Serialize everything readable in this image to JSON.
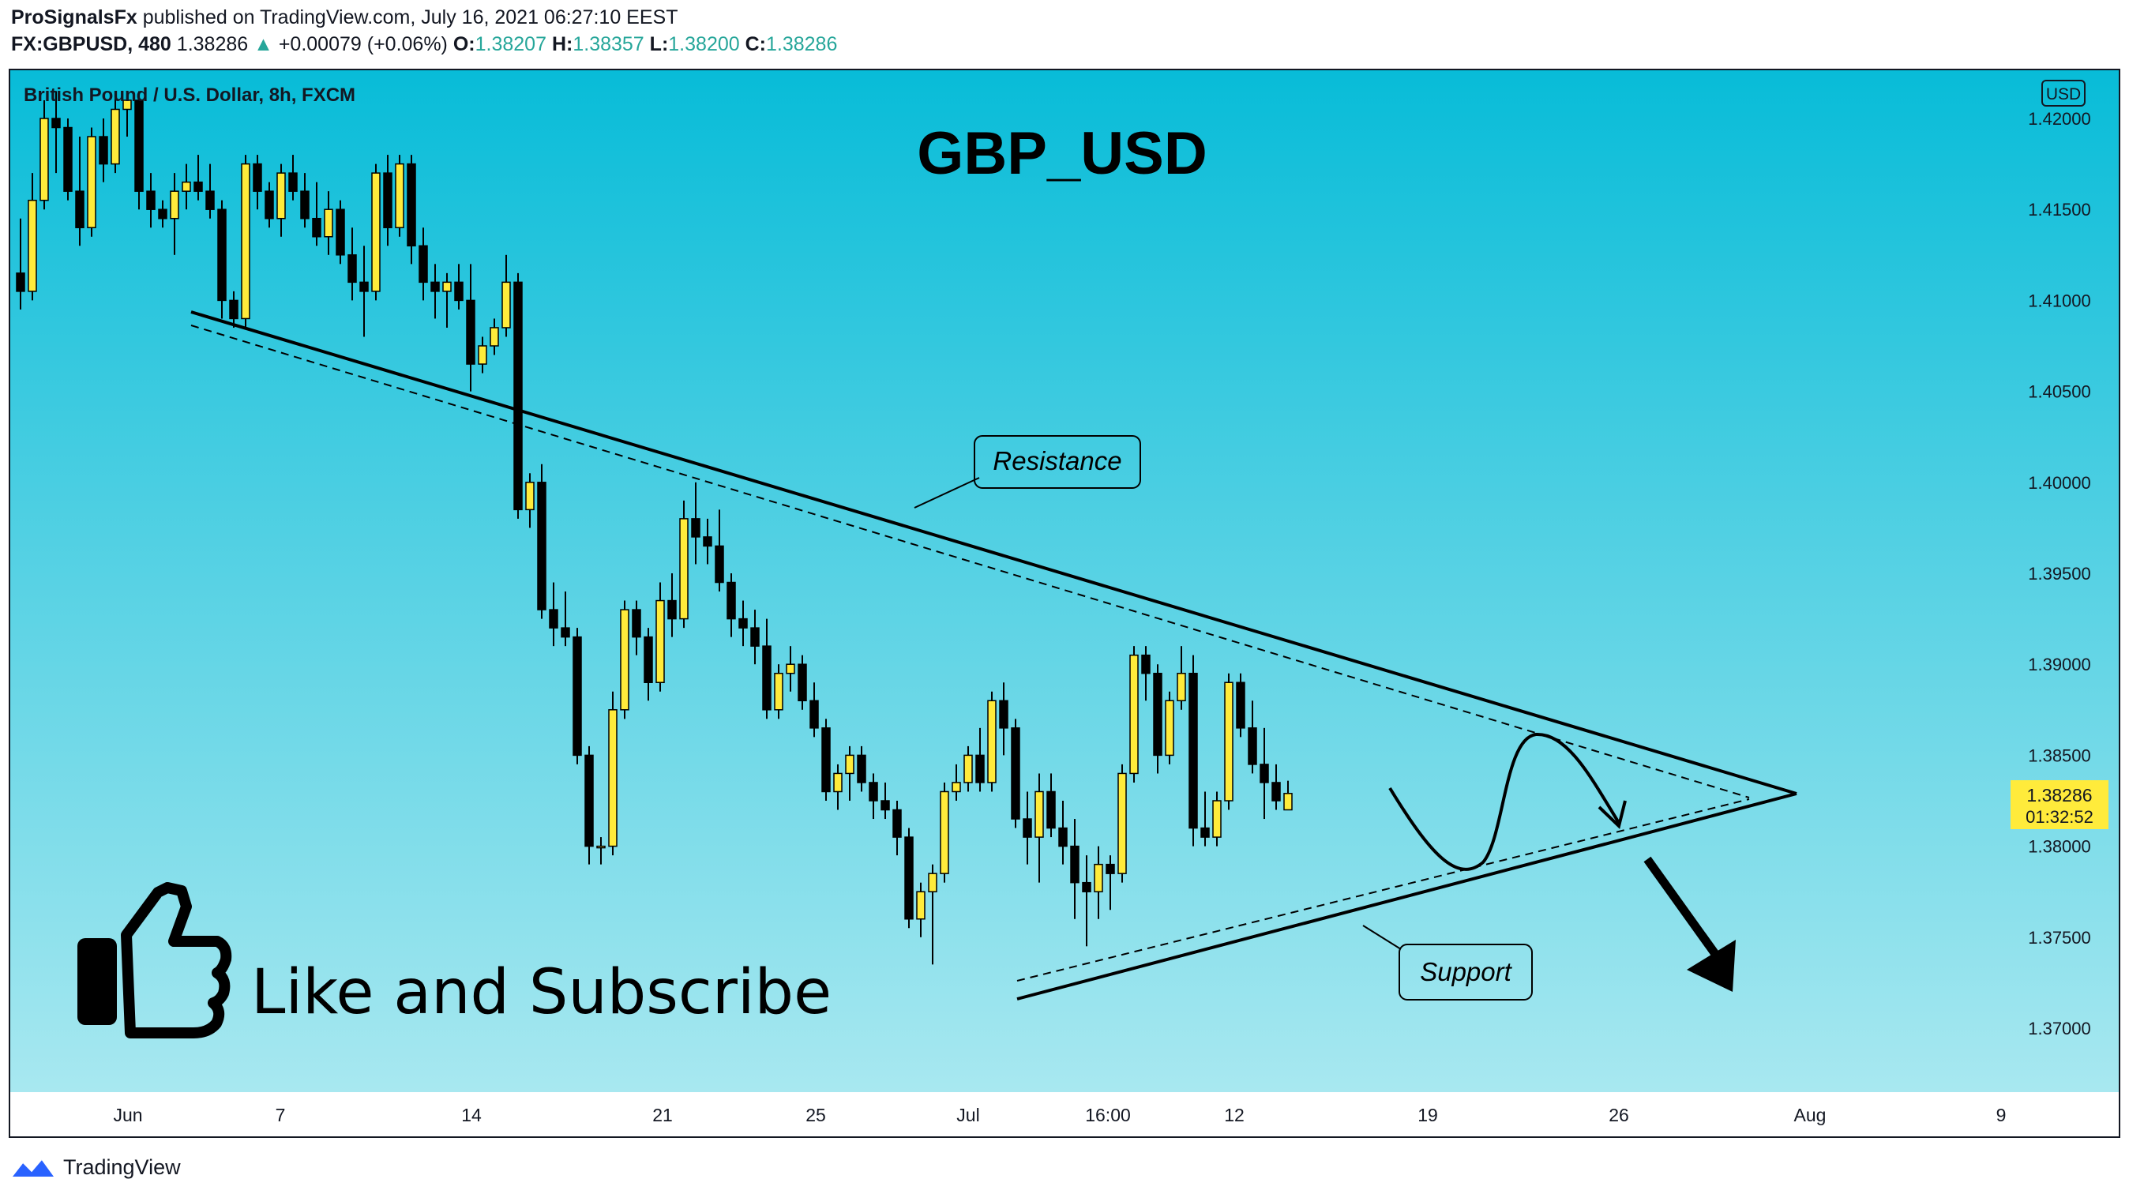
{
  "header": {
    "author": "ProSignalsFx",
    "published_text": "published on TradingView.com, July 16, 2021 06:27:10 EEST",
    "symbol": "FX:GBPUSD, 480",
    "last": "1.38286",
    "change": "+0.00079 (+0.06%)",
    "o_label": "O:",
    "o": "1.38207",
    "h_label": "H:",
    "h": "1.38357",
    "l_label": "L:",
    "l": "1.38200",
    "c_label": "C:",
    "c": "1.38286"
  },
  "chart": {
    "legend": "British Pound / U.S. Dollar, 8h, FXCM",
    "title": "GBP_USD",
    "currency_badge": "USD",
    "price_tag": "1.38286",
    "countdown": "01:32:52",
    "resistance_label": "Resistance",
    "support_label": "Support",
    "cta": "Like and Subscribe"
  },
  "footer": {
    "brand": "TradingView"
  },
  "colors": {
    "bg_top": "#08BCD8",
    "bg_bottom": "#A8E8F0",
    "candle_up": "#FFEB3B",
    "candle_down": "#000000",
    "price_tag": "#FFEB3B"
  },
  "chart_data": {
    "type": "candlestick",
    "title": "GBP_USD",
    "y_unit": "USD",
    "ylim": [
      1.3675,
      1.4215
    ],
    "yticks": [
      "1.42000",
      "1.41500",
      "1.41000",
      "1.40500",
      "1.40000",
      "1.39500",
      "1.39000",
      "1.38500",
      "1.38000",
      "1.37500",
      "1.37000"
    ],
    "xticks": [
      "Jun",
      "7",
      "14",
      "21",
      "25",
      "Jul",
      "16:00",
      "12",
      "19",
      "26",
      "Aug",
      "9"
    ],
    "ohlc": [
      [
        1.4115,
        1.4145,
        1.4095,
        1.4105
      ],
      [
        1.4105,
        1.417,
        1.41,
        1.4155
      ],
      [
        1.4155,
        1.421,
        1.415,
        1.42
      ],
      [
        1.42,
        1.4215,
        1.417,
        1.4195
      ],
      [
        1.4195,
        1.42,
        1.4155,
        1.416
      ],
      [
        1.416,
        1.419,
        1.413,
        1.414
      ],
      [
        1.414,
        1.4195,
        1.4135,
        1.419
      ],
      [
        1.419,
        1.42,
        1.4165,
        1.4175
      ],
      [
        1.4175,
        1.4215,
        1.417,
        1.4205
      ],
      [
        1.4205,
        1.4215,
        1.419,
        1.421
      ],
      [
        1.421,
        1.4215,
        1.415,
        1.416
      ],
      [
        1.416,
        1.417,
        1.414,
        1.415
      ],
      [
        1.415,
        1.4155,
        1.414,
        1.4145
      ],
      [
        1.4145,
        1.417,
        1.4125,
        1.416
      ],
      [
        1.416,
        1.4175,
        1.415,
        1.4165
      ],
      [
        1.4165,
        1.418,
        1.4155,
        1.416
      ],
      [
        1.416,
        1.4175,
        1.4145,
        1.415
      ],
      [
        1.415,
        1.4155,
        1.409,
        1.41
      ],
      [
        1.41,
        1.4105,
        1.4085,
        1.409
      ],
      [
        1.409,
        1.418,
        1.4085,
        1.4175
      ],
      [
        1.4175,
        1.418,
        1.415,
        1.416
      ],
      [
        1.416,
        1.4165,
        1.414,
        1.4145
      ],
      [
        1.4145,
        1.4175,
        1.4135,
        1.417
      ],
      [
        1.417,
        1.418,
        1.4155,
        1.416
      ],
      [
        1.416,
        1.417,
        1.414,
        1.4145
      ],
      [
        1.4145,
        1.4165,
        1.413,
        1.4135
      ],
      [
        1.4135,
        1.416,
        1.4125,
        1.415
      ],
      [
        1.415,
        1.4155,
        1.412,
        1.4125
      ],
      [
        1.4125,
        1.414,
        1.41,
        1.411
      ],
      [
        1.411,
        1.413,
        1.408,
        1.4105
      ],
      [
        1.4105,
        1.4175,
        1.41,
        1.417
      ],
      [
        1.417,
        1.418,
        1.413,
        1.414
      ],
      [
        1.414,
        1.418,
        1.4135,
        1.4175
      ],
      [
        1.4175,
        1.418,
        1.412,
        1.413
      ],
      [
        1.413,
        1.414,
        1.41,
        1.411
      ],
      [
        1.411,
        1.412,
        1.409,
        1.4105
      ],
      [
        1.4105,
        1.4115,
        1.4085,
        1.411
      ],
      [
        1.411,
        1.412,
        1.4095,
        1.41
      ],
      [
        1.41,
        1.412,
        1.405,
        1.4065
      ],
      [
        1.4065,
        1.408,
        1.406,
        1.4075
      ],
      [
        1.4075,
        1.409,
        1.407,
        1.4085
      ],
      [
        1.4085,
        1.4125,
        1.408,
        1.411
      ],
      [
        1.411,
        1.4115,
        1.398,
        1.3985
      ],
      [
        1.3985,
        1.4005,
        1.3975,
        1.4
      ],
      [
        1.4,
        1.401,
        1.3925,
        1.393
      ],
      [
        1.393,
        1.3945,
        1.391,
        1.392
      ],
      [
        1.392,
        1.394,
        1.391,
        1.3915
      ],
      [
        1.3915,
        1.392,
        1.3845,
        1.385
      ],
      [
        1.385,
        1.3855,
        1.379,
        1.38
      ],
      [
        1.38,
        1.3805,
        1.379,
        1.38
      ],
      [
        1.38,
        1.3885,
        1.3795,
        1.3875
      ],
      [
        1.3875,
        1.3935,
        1.387,
        1.393
      ],
      [
        1.393,
        1.3935,
        1.3905,
        1.3915
      ],
      [
        1.3915,
        1.392,
        1.388,
        1.389
      ],
      [
        1.389,
        1.3945,
        1.3885,
        1.3935
      ],
      [
        1.3935,
        1.395,
        1.3915,
        1.3925
      ],
      [
        1.3925,
        1.399,
        1.392,
        1.398
      ],
      [
        1.398,
        1.4,
        1.3955,
        1.397
      ],
      [
        1.397,
        1.398,
        1.3955,
        1.3965
      ],
      [
        1.3965,
        1.3985,
        1.394,
        1.3945
      ],
      [
        1.3945,
        1.395,
        1.3915,
        1.3925
      ],
      [
        1.3925,
        1.3935,
        1.391,
        1.392
      ],
      [
        1.392,
        1.393,
        1.39,
        1.391
      ],
      [
        1.391,
        1.3925,
        1.387,
        1.3875
      ],
      [
        1.3875,
        1.39,
        1.387,
        1.3895
      ],
      [
        1.3895,
        1.391,
        1.3885,
        1.39
      ],
      [
        1.39,
        1.3905,
        1.3875,
        1.388
      ],
      [
        1.388,
        1.389,
        1.386,
        1.3865
      ],
      [
        1.3865,
        1.387,
        1.3825,
        1.383
      ],
      [
        1.383,
        1.3845,
        1.382,
        1.384
      ],
      [
        1.384,
        1.3855,
        1.3825,
        1.385
      ],
      [
        1.385,
        1.3855,
        1.383,
        1.3835
      ],
      [
        1.3835,
        1.384,
        1.3815,
        1.3825
      ],
      [
        1.3825,
        1.3835,
        1.3815,
        1.382
      ],
      [
        1.382,
        1.3825,
        1.3795,
        1.3805
      ],
      [
        1.3805,
        1.381,
        1.3755,
        1.376
      ],
      [
        1.376,
        1.378,
        1.375,
        1.3775
      ],
      [
        1.3775,
        1.379,
        1.3735,
        1.3785
      ],
      [
        1.3785,
        1.3835,
        1.378,
        1.383
      ],
      [
        1.383,
        1.3845,
        1.3825,
        1.3835
      ],
      [
        1.3835,
        1.3855,
        1.383,
        1.385
      ],
      [
        1.385,
        1.3865,
        1.383,
        1.3835
      ],
      [
        1.3835,
        1.3885,
        1.383,
        1.388
      ],
      [
        1.388,
        1.389,
        1.385,
        1.3865
      ],
      [
        1.3865,
        1.387,
        1.381,
        1.3815
      ],
      [
        1.3815,
        1.383,
        1.379,
        1.3805
      ],
      [
        1.3805,
        1.384,
        1.378,
        1.383
      ],
      [
        1.383,
        1.384,
        1.3805,
        1.381
      ],
      [
        1.381,
        1.3825,
        1.379,
        1.38
      ],
      [
        1.38,
        1.3815,
        1.376,
        1.378
      ],
      [
        1.378,
        1.3795,
        1.3745,
        1.3775
      ],
      [
        1.3775,
        1.38,
        1.376,
        1.379
      ],
      [
        1.379,
        1.3795,
        1.3765,
        1.3785
      ],
      [
        1.3785,
        1.3845,
        1.378,
        1.384
      ],
      [
        1.384,
        1.391,
        1.3835,
        1.3905
      ],
      [
        1.3905,
        1.391,
        1.388,
        1.3895
      ],
      [
        1.3895,
        1.39,
        1.384,
        1.385
      ],
      [
        1.385,
        1.3885,
        1.3845,
        1.388
      ],
      [
        1.388,
        1.391,
        1.3875,
        1.3895
      ],
      [
        1.3895,
        1.3905,
        1.38,
        1.381
      ],
      [
        1.381,
        1.383,
        1.38,
        1.3805
      ],
      [
        1.3805,
        1.383,
        1.38,
        1.3825
      ],
      [
        1.3825,
        1.3895,
        1.382,
        1.389
      ],
      [
        1.389,
        1.3895,
        1.386,
        1.3865
      ],
      [
        1.3865,
        1.388,
        1.384,
        1.3845
      ],
      [
        1.3845,
        1.3865,
        1.3815,
        1.3835
      ],
      [
        1.3835,
        1.3845,
        1.382,
        1.3825
      ],
      [
        1.382,
        1.3836,
        1.382,
        1.3829
      ]
    ],
    "annotations": {
      "resistance": "Resistance",
      "support": "Support",
      "last_price": "1.38286"
    }
  }
}
